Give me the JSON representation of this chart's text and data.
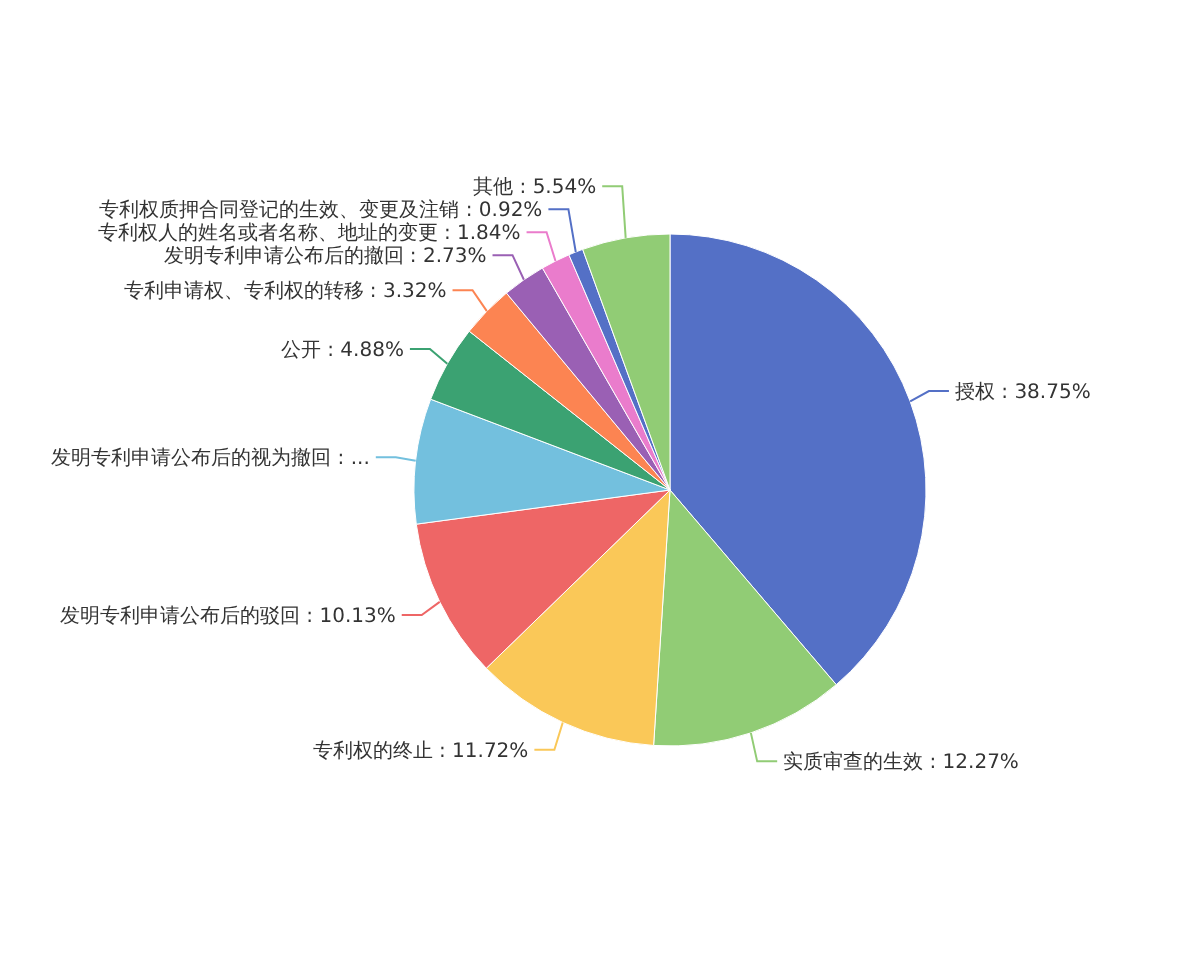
{
  "chart_data": {
    "type": "pie",
    "categories": [
      "授权",
      "实质审查的生效",
      "专利权的终止",
      "发明专利申请公布后的驳回",
      "发明专利申请公布后的视为撤回",
      "公开",
      "专利申请权、专利权的转移",
      "发明专利申请公布后的撤回",
      "专利权人的姓名或者名称、地址的变更",
      "专利权质押合同登记的生效、变更及注销",
      "其他"
    ],
    "values": [
      38.75,
      12.27,
      11.72,
      10.13,
      7.9,
      4.88,
      3.32,
      2.73,
      1.84,
      0.92,
      5.54
    ],
    "value_labels": [
      "38.75%",
      "12.27%",
      "11.72%",
      "10.13%",
      "...",
      "4.88%",
      "3.32%",
      "2.73%",
      "1.84%",
      "0.92%",
      "5.54%"
    ],
    "colors": [
      "#5470c6",
      "#91cc75",
      "#fac858",
      "#ee6666",
      "#73c0de",
      "#3ba272",
      "#fc8452",
      "#9a60b4",
      "#ea7ccc",
      "#5470c6",
      "#91cc75"
    ]
  }
}
